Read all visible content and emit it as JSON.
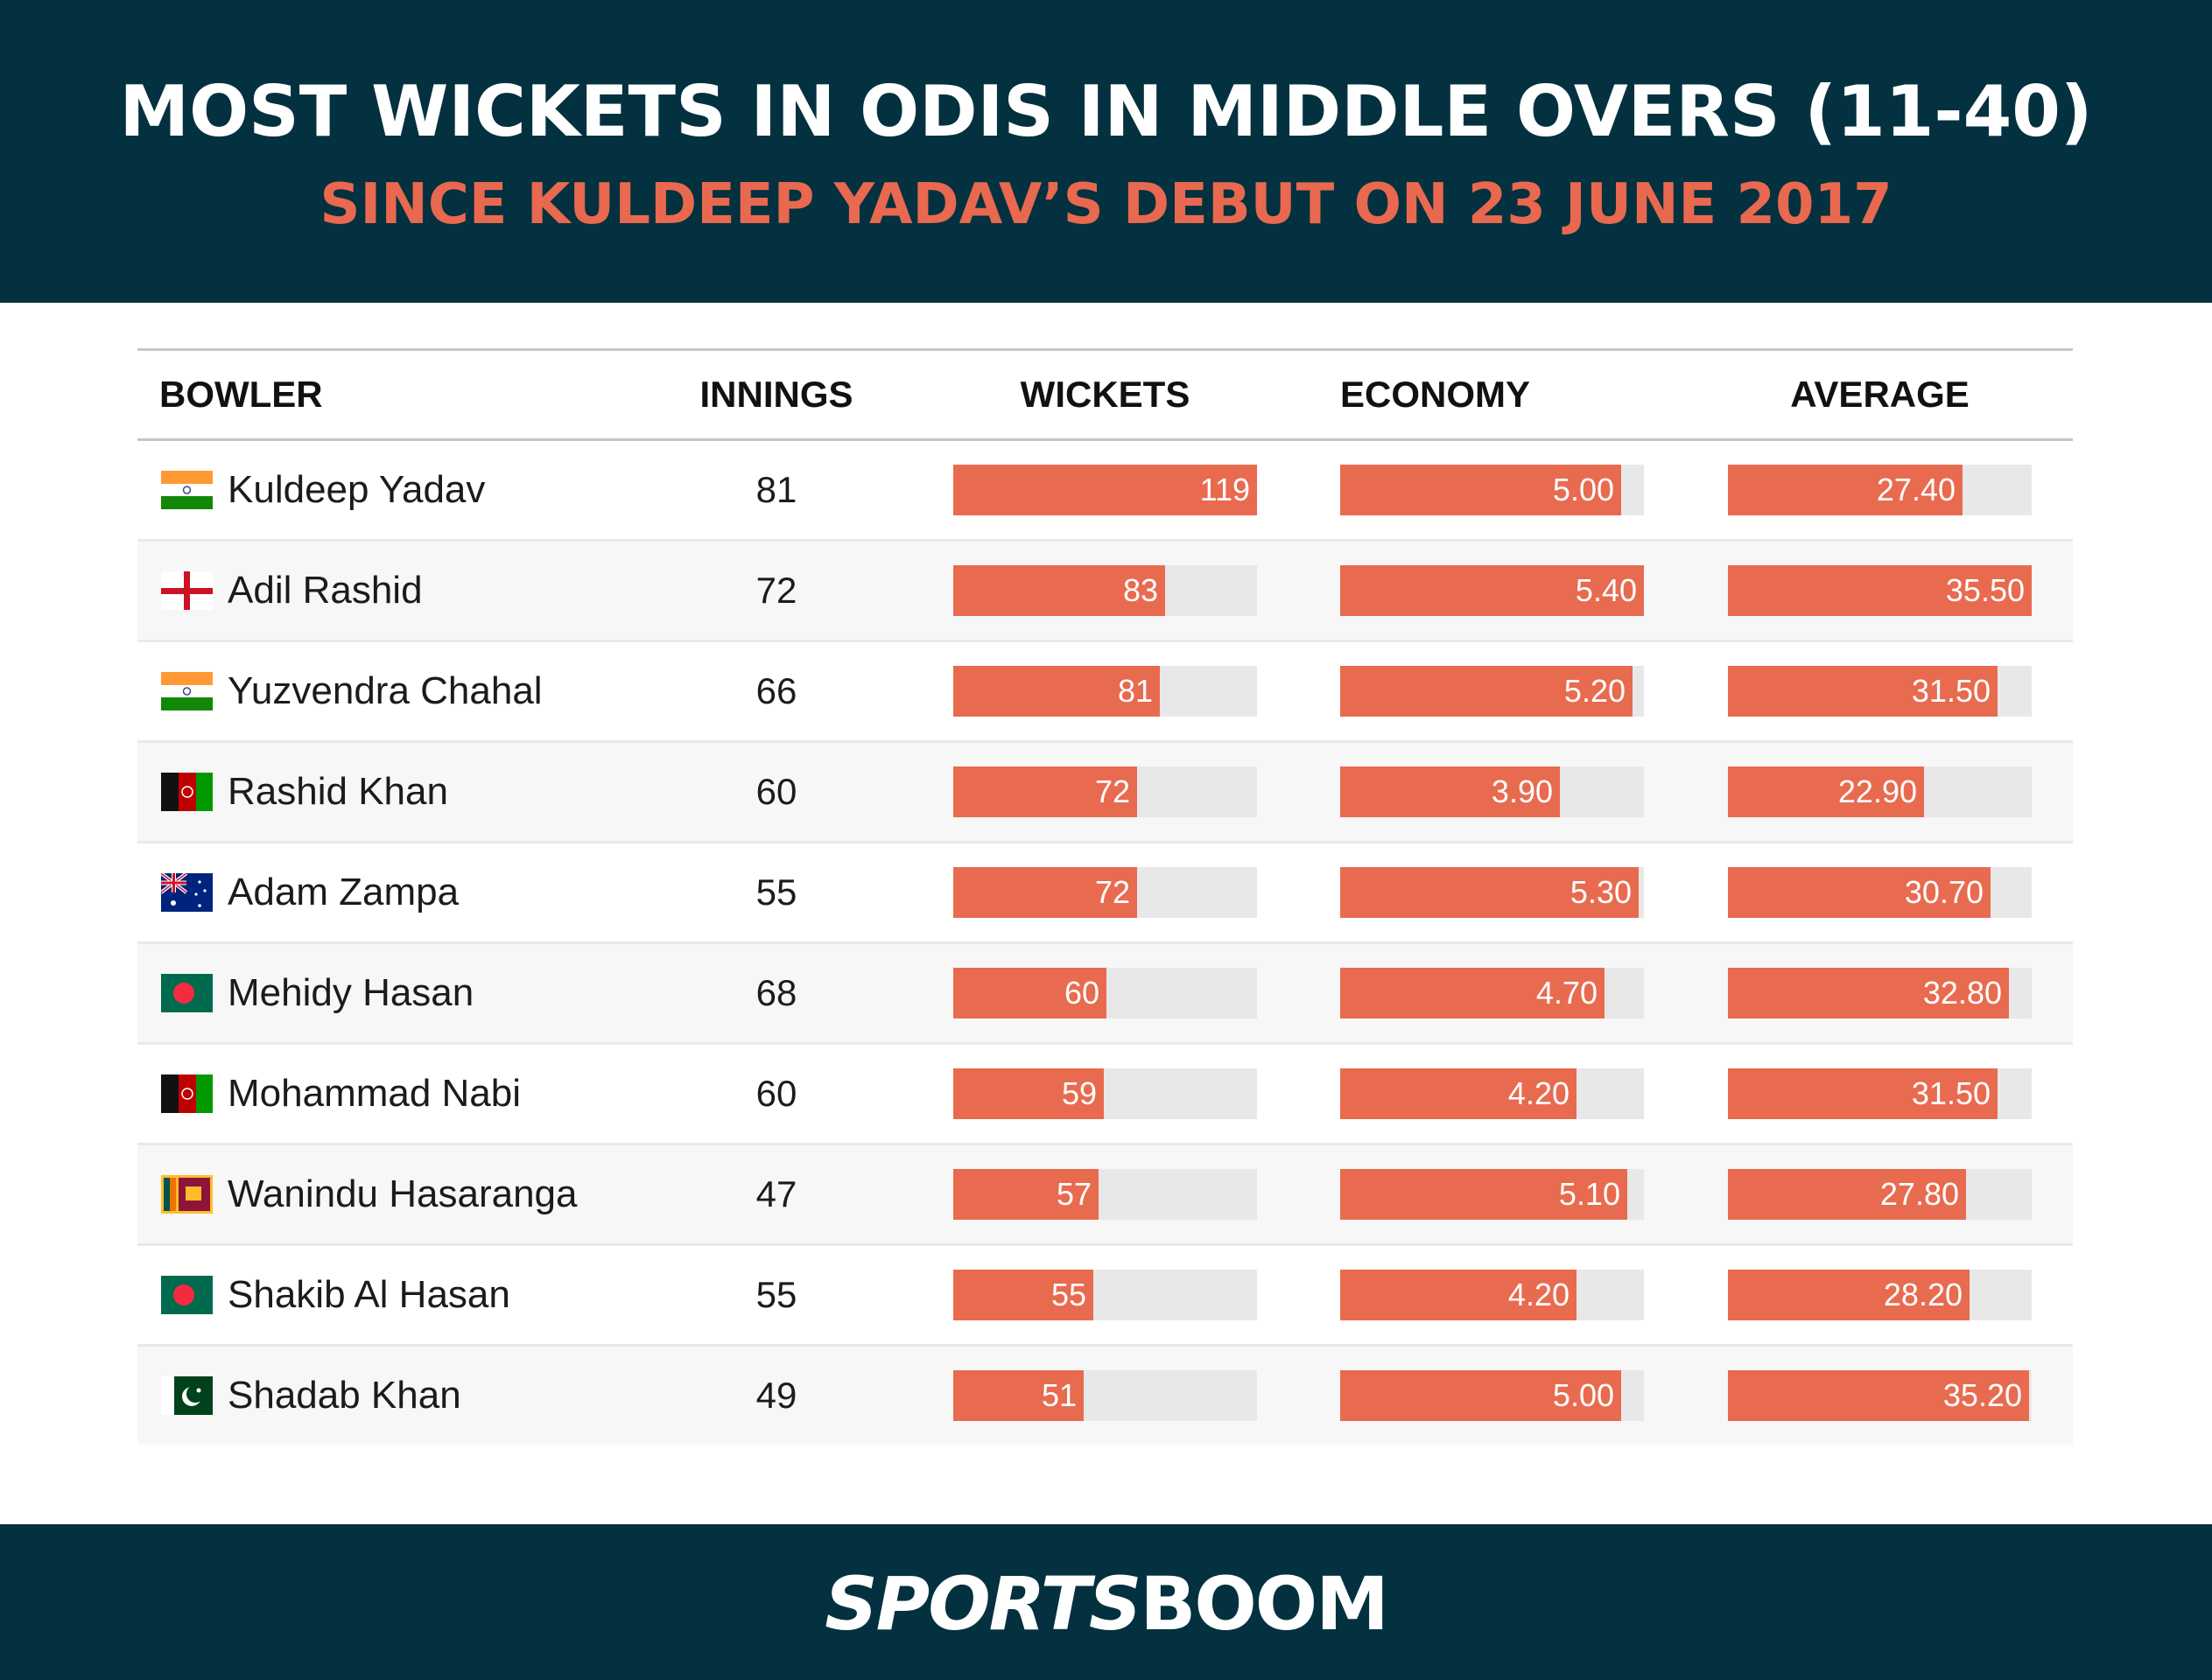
{
  "header": {
    "title": "MOST WICKETS IN ODIS IN MIDDLE OVERS (11-40)",
    "subtitle": "SINCE KULDEEP YADAV’S DEBUT ON 23 JUNE 2017"
  },
  "table": {
    "columns": [
      "BOWLER",
      "INNINGS",
      "WICKETS",
      "ECONOMY",
      "AVERAGE"
    ],
    "scale_max": {
      "wickets": 119,
      "economy": 5.4,
      "average": 35.5
    },
    "rows": [
      {
        "bowler": "Kuldeep Yadav",
        "flag": "india-flag",
        "innings": "81",
        "wickets": "119",
        "economy": "5.00",
        "average": "27.40"
      },
      {
        "bowler": "Adil Rashid",
        "flag": "england-flag",
        "innings": "72",
        "wickets": "83",
        "economy": "5.40",
        "average": "35.50"
      },
      {
        "bowler": "Yuzvendra Chahal",
        "flag": "india-flag",
        "innings": "66",
        "wickets": "81",
        "economy": "5.20",
        "average": "31.50"
      },
      {
        "bowler": "Rashid Khan",
        "flag": "afghanistan-flag",
        "innings": "60",
        "wickets": "72",
        "economy": "3.90",
        "average": "22.90"
      },
      {
        "bowler": "Adam Zampa",
        "flag": "australia-flag",
        "innings": "55",
        "wickets": "72",
        "economy": "5.30",
        "average": "30.70"
      },
      {
        "bowler": "Mehidy Hasan",
        "flag": "bangladesh-flag",
        "innings": "68",
        "wickets": "60",
        "economy": "4.70",
        "average": "32.80"
      },
      {
        "bowler": "Mohammad Nabi",
        "flag": "afghanistan-flag",
        "innings": "60",
        "wickets": "59",
        "economy": "4.20",
        "average": "31.50"
      },
      {
        "bowler": "Wanindu Hasaranga",
        "flag": "sri-lanka-flag",
        "innings": "47",
        "wickets": "57",
        "economy": "5.10",
        "average": "27.80"
      },
      {
        "bowler": "Shakib Al Hasan",
        "flag": "bangladesh-flag",
        "innings": "55",
        "wickets": "55",
        "economy": "4.20",
        "average": "28.20"
      },
      {
        "bowler": "Shadab Khan",
        "flag": "pakistan-flag",
        "innings": "49",
        "wickets": "51",
        "economy": "5.00",
        "average": "35.20"
      }
    ]
  },
  "colors": {
    "header_bg": "#04313f",
    "accent": "#e86b50",
    "track": "#e8e8e8",
    "alt_row": "#f7f7f7"
  },
  "footer": {
    "logo_part1": "SPORTS",
    "logo_part2": "BOOM"
  },
  "chart_data": {
    "type": "table",
    "title": "MOST WICKETS IN ODIS IN MIDDLE OVERS (11-40)",
    "subtitle": "SINCE KULDEEP YADAV’S DEBUT ON 23 JUNE 2017",
    "categories": [
      "Kuldeep Yadav",
      "Adil Rashid",
      "Yuzvendra Chahal",
      "Rashid Khan",
      "Adam Zampa",
      "Mehidy Hasan",
      "Mohammad Nabi",
      "Wanindu Hasaranga",
      "Shakib Al Hasan",
      "Shadab Khan"
    ],
    "series": [
      {
        "name": "INNINGS",
        "values": [
          81,
          72,
          66,
          60,
          55,
          68,
          60,
          47,
          55,
          49
        ]
      },
      {
        "name": "WICKETS",
        "values": [
          119,
          83,
          81,
          72,
          72,
          60,
          59,
          57,
          55,
          51
        ]
      },
      {
        "name": "ECONOMY",
        "values": [
          5.0,
          5.4,
          5.2,
          3.9,
          5.3,
          4.7,
          4.2,
          5.1,
          4.2,
          5.0
        ]
      },
      {
        "name": "AVERAGE",
        "values": [
          27.4,
          35.5,
          31.5,
          22.9,
          30.7,
          32.8,
          31.5,
          27.8,
          28.2,
          35.2
        ]
      }
    ]
  }
}
